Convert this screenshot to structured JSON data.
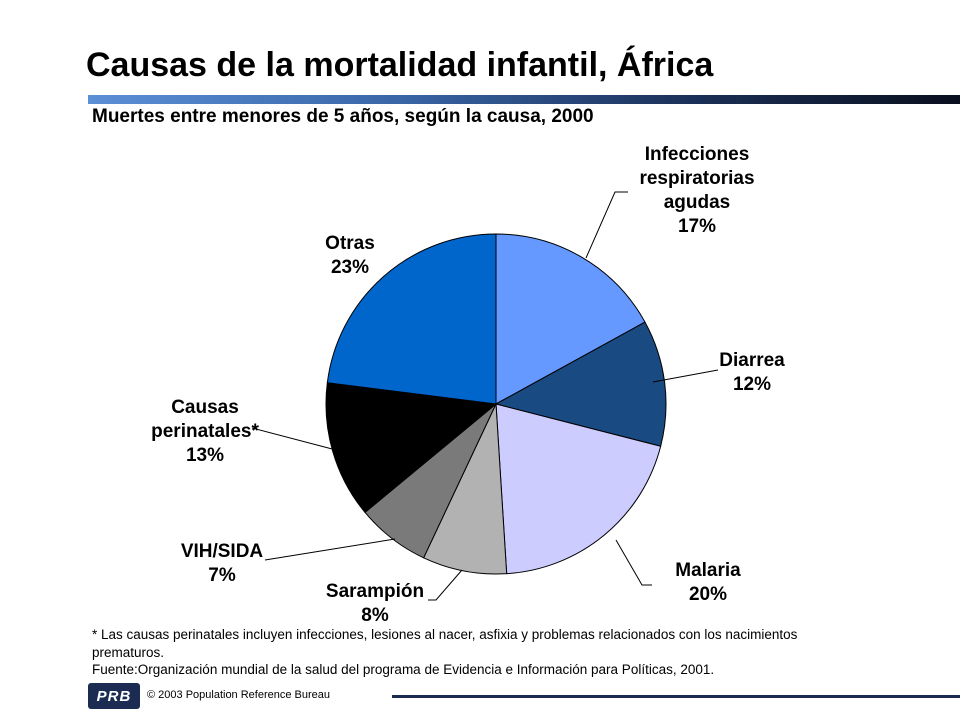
{
  "title": "Causas de la mortalidad infantil, África",
  "subtitle": "Muertes entre menores de 5 años, según la causa, 2000",
  "chart_data": {
    "type": "pie",
    "slices": [
      {
        "name": "Infecciones respiratorias agudas",
        "label_lines": [
          "Infecciones",
          "respiratorias",
          "agudas"
        ],
        "value": 17,
        "value_label": "17%",
        "color": "#6699ff"
      },
      {
        "name": "Diarrea",
        "label_lines": [
          "Diarrea"
        ],
        "value": 12,
        "value_label": "12%",
        "color": "#1a4a82"
      },
      {
        "name": "Malaria",
        "label_lines": [
          "Malaria"
        ],
        "value": 20,
        "value_label": "20%",
        "color": "#ccccff"
      },
      {
        "name": "Sarampión",
        "label_lines": [
          "Sarampión"
        ],
        "value": 8,
        "value_label": "8%",
        "color": "#b2b2b2"
      },
      {
        "name": "VIH/SIDA",
        "label_lines": [
          "VIH/SIDA"
        ],
        "value": 7,
        "value_label": "7%",
        "color": "#7a7a7a"
      },
      {
        "name": "Causas perinatales*",
        "label_lines": [
          "Causas",
          "perinatales*"
        ],
        "value": 13,
        "value_label": "13%",
        "color": "#000000"
      },
      {
        "name": "Otras",
        "label_lines": [
          "Otras"
        ],
        "value": 23,
        "value_label": "23%",
        "color": "#0066cc"
      }
    ]
  },
  "footnote": {
    "note": "* Las causas perinatales incluyen infecciones, lesiones al nacer, asfixia y problemas relacionados con los nacimientos prematuros.",
    "source": "Fuente:Organización mundial de la salud del programa de Evidencia e Información para Políticas, 2001."
  },
  "footer": {
    "logo_text": "PRB",
    "copyright": "© 2003 Population Reference Bureau"
  }
}
